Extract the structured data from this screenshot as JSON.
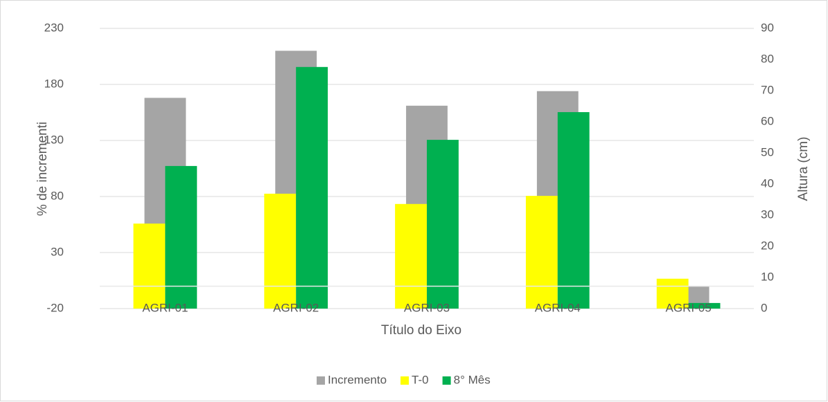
{
  "chart_data": {
    "type": "bar",
    "x_label": "Título do Eixo",
    "y_label": "% de incrementi",
    "y2_label": "Altura (cm)",
    "categories": [
      "AGRI-01",
      "AGRI-02",
      "AGRI-03",
      "AGRI-04",
      "AGRI-05"
    ],
    "series": [
      {
        "name": "Incremento",
        "color": "#a5a5a5",
        "values": [
          168,
          210,
          161,
          174,
          -16
        ]
      },
      {
        "name": "T-0",
        "color": "#ffff00",
        "values": [
          27.3,
          36.9,
          33.6,
          36.2,
          9.6
        ],
        "axis": "y2"
      },
      {
        "name": "8° Mês",
        "color": "#00b050",
        "values": [
          45.8,
          77.6,
          54.2,
          63.1,
          1.8
        ],
        "axis": "y2"
      }
    ],
    "ylim": [
      -20,
      230
    ],
    "yticks": [
      -20,
      30,
      80,
      130,
      180,
      230
    ],
    "y2lim": [
      0,
      90
    ],
    "y2ticks": [
      0,
      10,
      20,
      30,
      40,
      50,
      60,
      70,
      80,
      90
    ],
    "grid": true,
    "legend": "bottom"
  }
}
